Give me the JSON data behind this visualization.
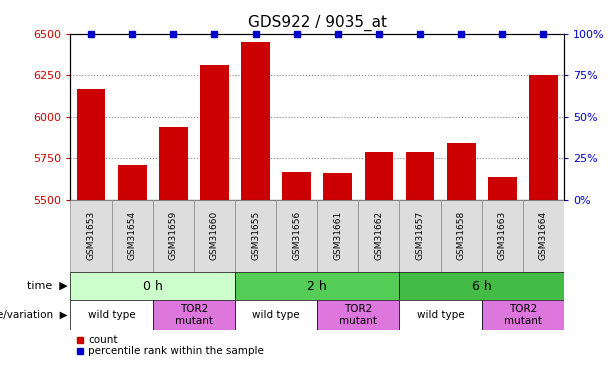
{
  "title": "GDS922 / 9035_at",
  "samples": [
    "GSM31653",
    "GSM31654",
    "GSM31659",
    "GSM31660",
    "GSM31655",
    "GSM31656",
    "GSM31661",
    "GSM31662",
    "GSM31657",
    "GSM31658",
    "GSM31663",
    "GSM31664"
  ],
  "counts": [
    6170,
    5710,
    5940,
    6310,
    6450,
    5670,
    5660,
    5790,
    5790,
    5840,
    5640,
    6250
  ],
  "percentile": [
    100,
    100,
    100,
    100,
    100,
    100,
    100,
    100,
    100,
    100,
    100,
    100
  ],
  "ylim_left": [
    5500,
    6500
  ],
  "ylim_right": [
    0,
    100
  ],
  "yticks_left": [
    5500,
    5750,
    6000,
    6250,
    6500
  ],
  "yticks_right": [
    0,
    25,
    50,
    75,
    100
  ],
  "bar_color": "#cc0000",
  "dot_color": "#0000cc",
  "dot_yval": 100,
  "time_groups": [
    {
      "label": "0 h",
      "start": 0,
      "end": 4,
      "color": "#ccffcc"
    },
    {
      "label": "2 h",
      "start": 4,
      "end": 8,
      "color": "#55cc55"
    },
    {
      "label": "6 h",
      "start": 8,
      "end": 12,
      "color": "#44bb44"
    }
  ],
  "genotype_groups": [
    {
      "label": "wild type",
      "start": 0,
      "end": 2,
      "color": "#ffffff"
    },
    {
      "label": "TOR2\nmutant",
      "start": 2,
      "end": 4,
      "color": "#dd77dd"
    },
    {
      "label": "wild type",
      "start": 4,
      "end": 6,
      "color": "#ffffff"
    },
    {
      "label": "TOR2\nmutant",
      "start": 6,
      "end": 8,
      "color": "#dd77dd"
    },
    {
      "label": "wild type",
      "start": 8,
      "end": 10,
      "color": "#ffffff"
    },
    {
      "label": "TOR2\nmutant",
      "start": 10,
      "end": 12,
      "color": "#dd77dd"
    }
  ],
  "xtick_bg": "#dddddd",
  "row_label_time": "time",
  "row_label_genotype": "genotype/variation",
  "legend_count": "count",
  "legend_percentile": "percentile rank within the sample",
  "grid_color": "#888888",
  "tick_label_color_left": "#cc0000",
  "tick_label_color_right": "#0000cc"
}
